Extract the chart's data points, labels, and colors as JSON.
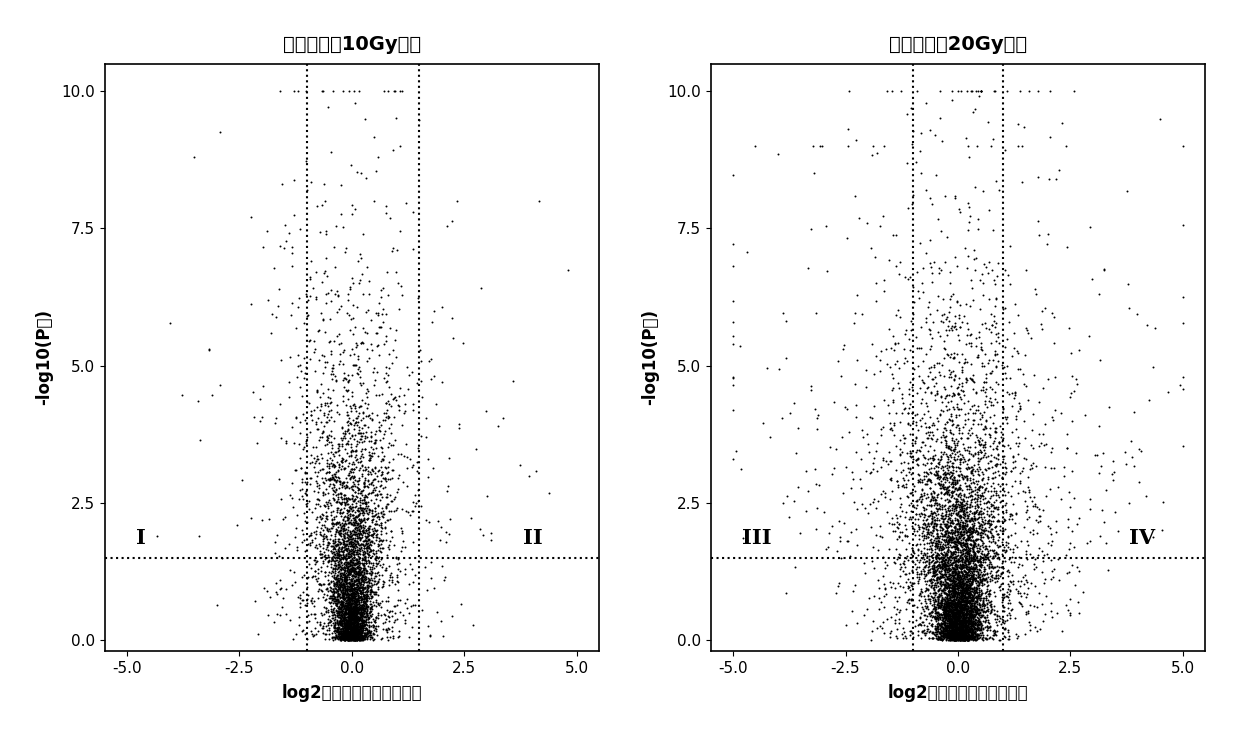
{
  "title1": "差异基因（10Gy组）",
  "title2": "差异基因（20Gy组）",
  "xlabel": "log2（基因表达变化倍数）",
  "ylabel": "-log10(P值)",
  "xlim": [
    -5.5,
    5.5
  ],
  "ylim": [
    -0.2,
    10.5
  ],
  "xticks": [
    -5.0,
    -2.5,
    0.0,
    2.5,
    5.0
  ],
  "yticks": [
    0.0,
    2.5,
    5.0,
    7.5,
    10.0
  ],
  "plot1_vline1": -1.0,
  "plot1_vline2": 1.5,
  "plot1_hline": 1.5,
  "plot2_vline1": -1.0,
  "plot2_vline2": 1.0,
  "plot2_hline": 1.5,
  "label1_left": "I",
  "label1_right": "II",
  "label2_left": "III",
  "label2_right": "IV",
  "dot_color": "#000000",
  "bg_color": "#ffffff"
}
